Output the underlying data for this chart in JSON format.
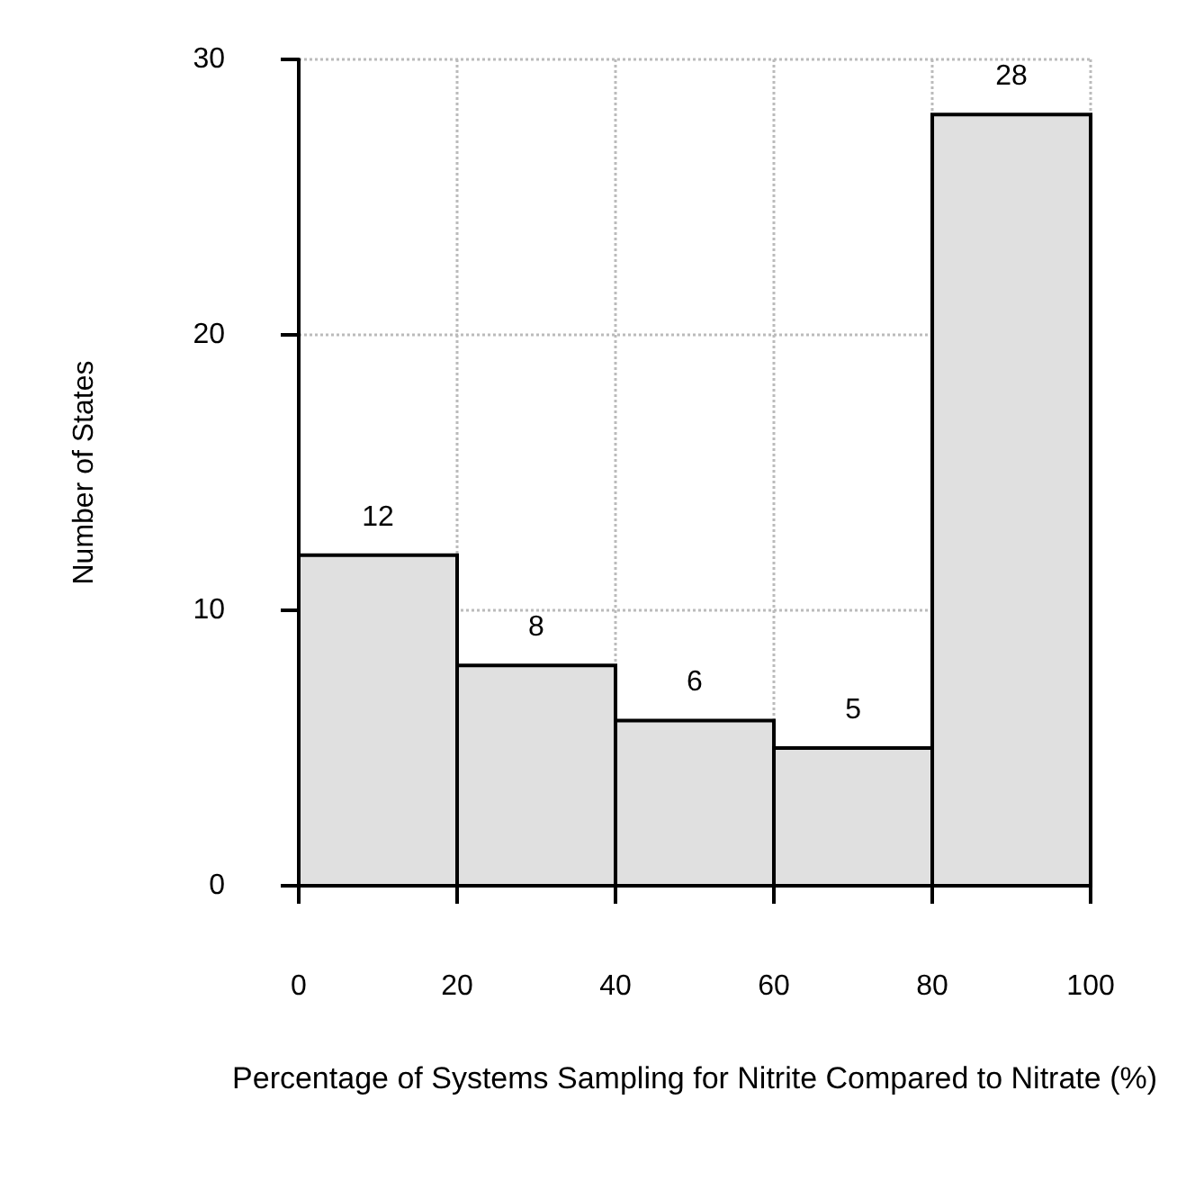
{
  "chart_data": {
    "type": "histogram",
    "bins": [
      0,
      20,
      40,
      60,
      80,
      100
    ],
    "values": [
      12,
      8,
      6,
      5,
      28
    ],
    "color": "#e0e0e0",
    "xlabel": "Percentage of Systems Sampling for Nitrite Compared to Nitrate (%)",
    "ylabel": "Number of States",
    "xlim": [
      0,
      100
    ],
    "xticks": [
      0,
      20,
      40,
      60,
      80,
      100
    ],
    "ylim": [
      0,
      30
    ],
    "yticks": [
      0,
      10,
      20,
      30
    ],
    "grid": true,
    "data_labels": true
  }
}
